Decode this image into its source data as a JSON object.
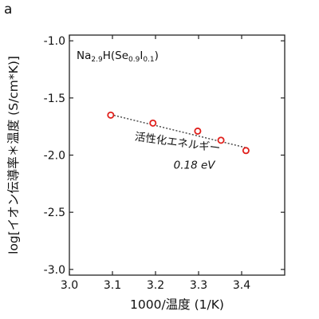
{
  "panel_label": "a",
  "chart_data": {
    "type": "scatter",
    "title": "",
    "xlabel": "1000/温度 (1/K)",
    "ylabel": "log[イオン伝導率＊温度 (S/cm*K)]",
    "xlim": [
      3.0,
      3.5
    ],
    "ylim": [
      -3.05,
      -0.95
    ],
    "xticks": [
      3.0,
      3.1,
      3.2,
      3.3,
      3.4
    ],
    "xtick_labels": [
      "3.0",
      "3.1",
      "3.2",
      "3.3",
      "3.4"
    ],
    "yticks": [
      -1.0,
      -1.5,
      -2.0,
      -2.5,
      -3.0
    ],
    "ytick_labels": [
      "-1.0",
      "-1.5",
      "-2.0",
      "-2.5",
      "-3.0"
    ],
    "grid": false,
    "series": [
      {
        "marker": "open-circle",
        "color": "#e0201c",
        "x": [
          3.096,
          3.194,
          3.298,
          3.352,
          3.41
        ],
        "y": [
          -1.65,
          -1.72,
          -1.79,
          -1.87,
          -1.96
        ]
      }
    ],
    "fit_line": {
      "style": "dotted",
      "color": "#333333",
      "x": [
        3.096,
        3.41
      ],
      "y": [
        -1.645,
        -1.935
      ]
    },
    "compound": {
      "base1": "Na",
      "sub1": "2.9",
      "base2": "H(Se",
      "sub2": "0.9",
      "base3": "I",
      "sub3": "0.1",
      "tail": ")"
    },
    "annotations": [
      {
        "text": "活性化エネルギー",
        "x": 3.25,
        "y": -1.92
      },
      {
        "text": "0.18 eV",
        "x": 3.29,
        "y": -2.12
      }
    ]
  }
}
